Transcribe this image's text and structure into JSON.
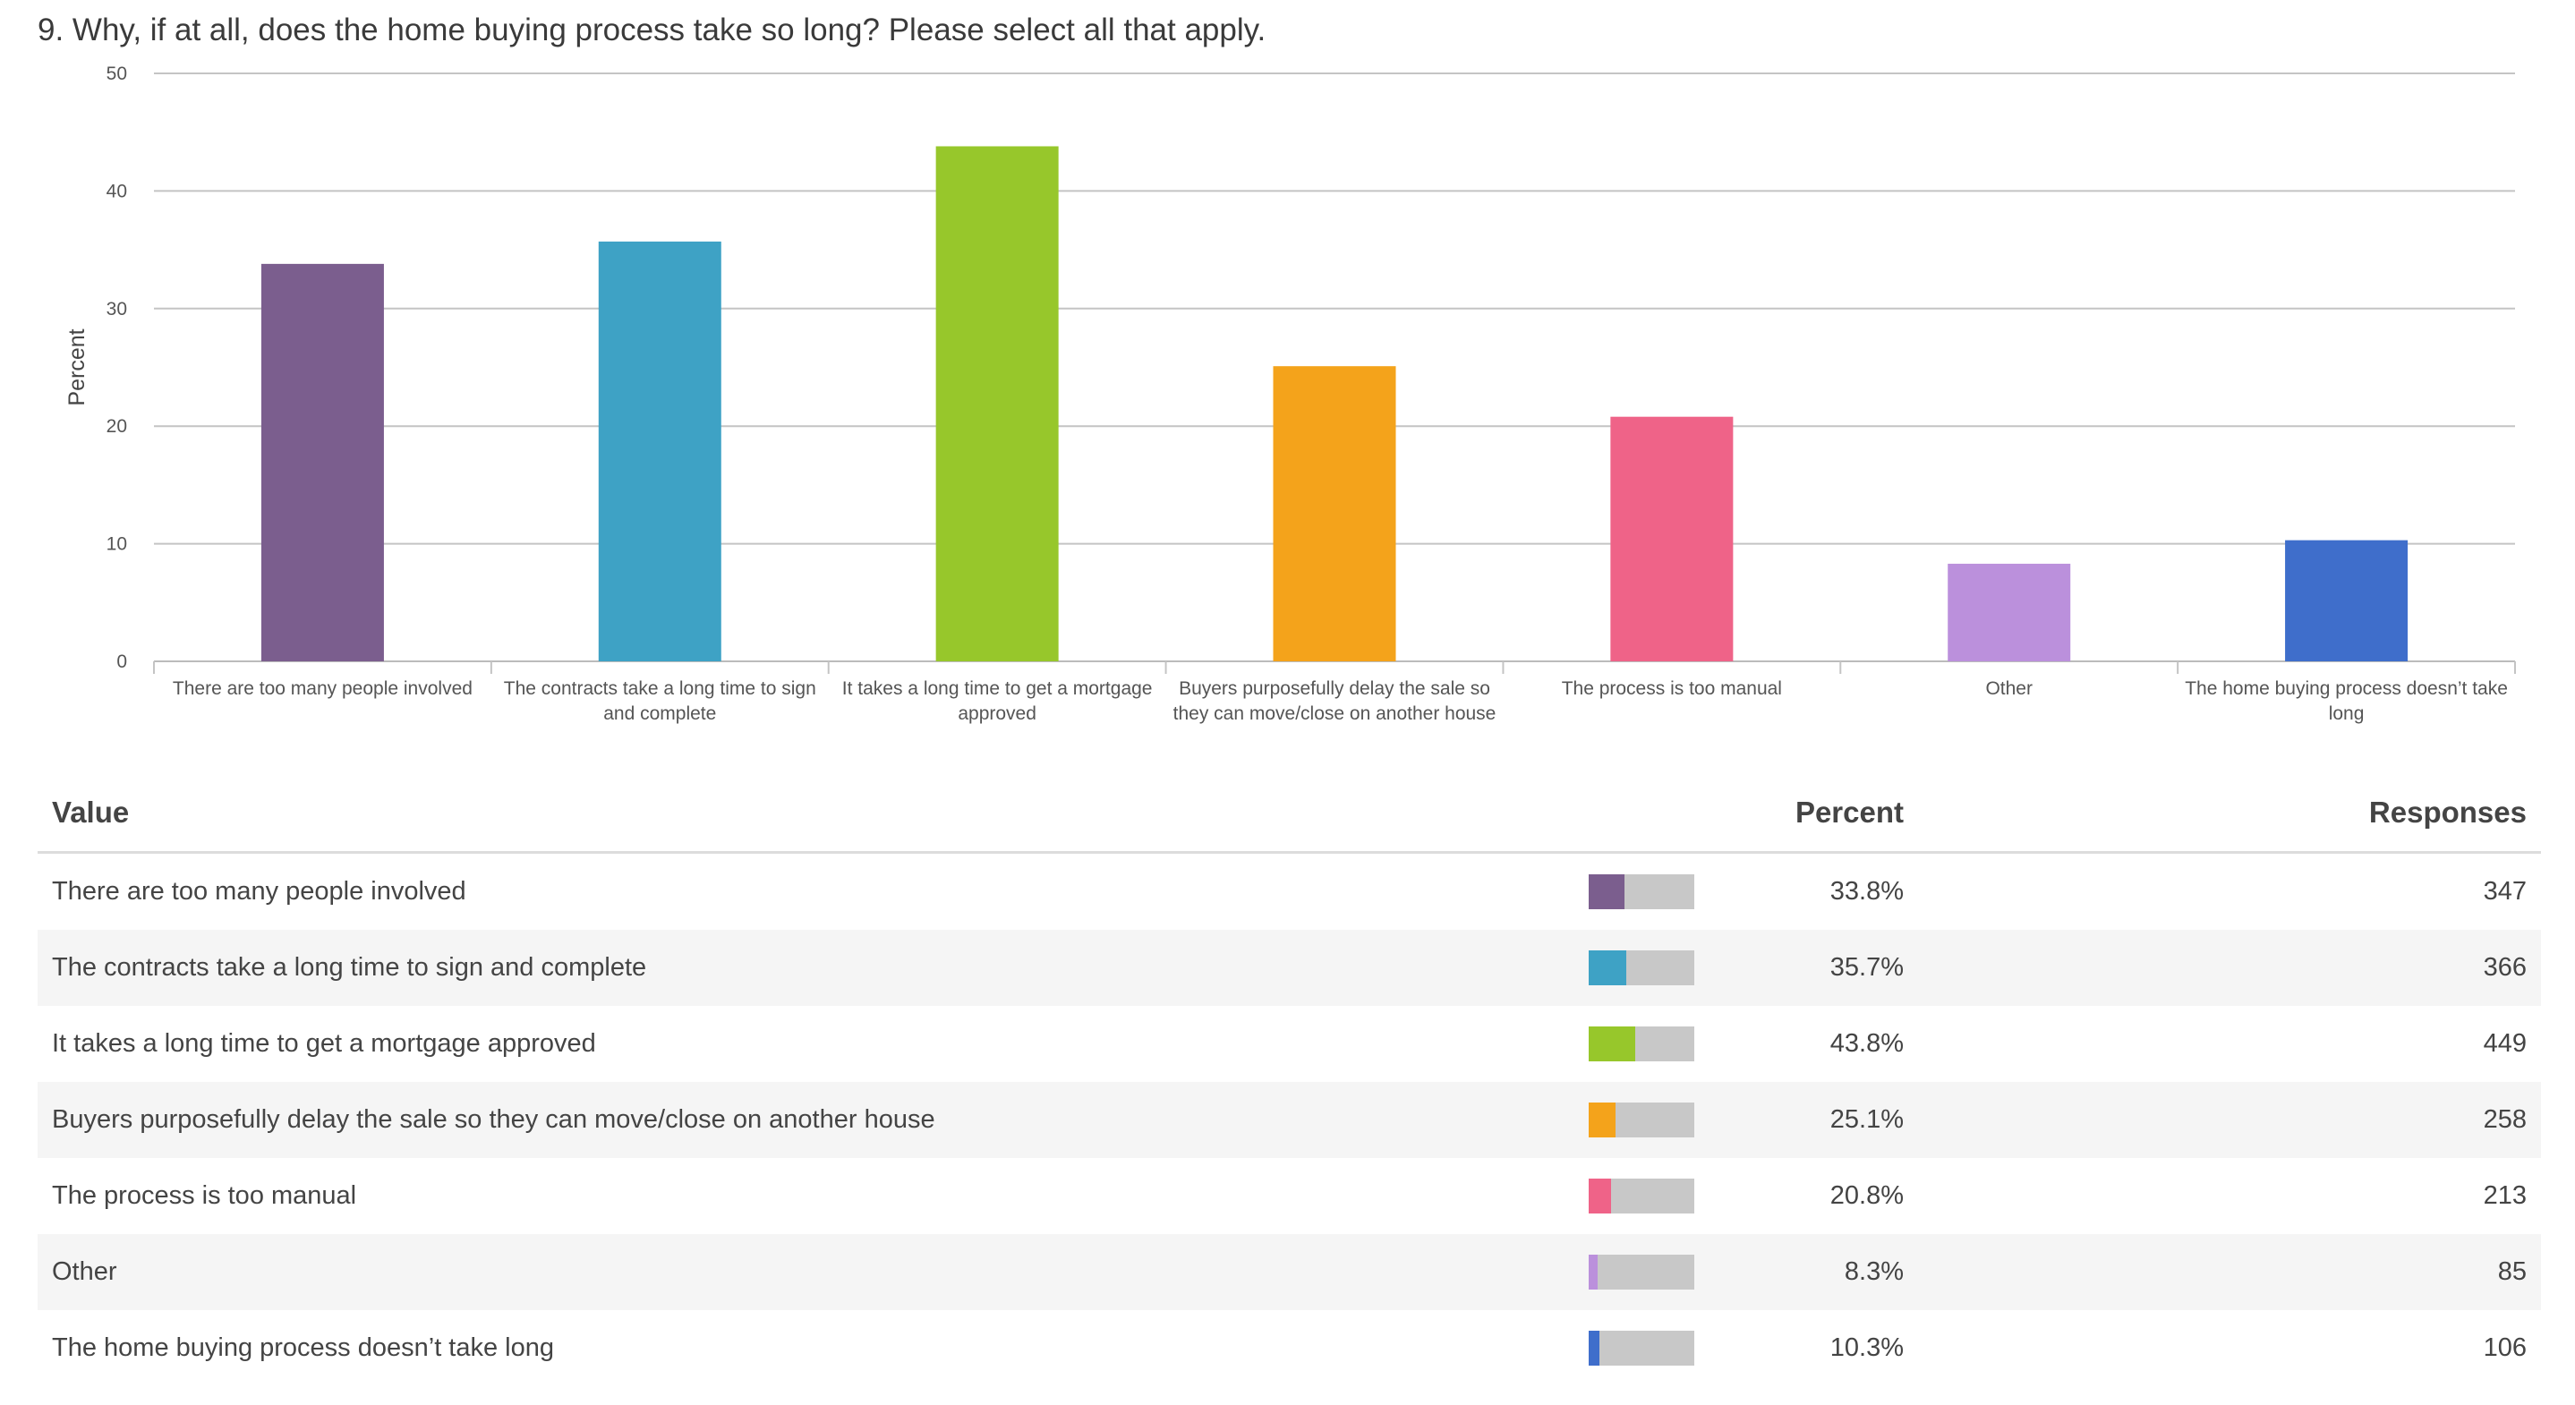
{
  "question": "9. Why, if at all, does the home buying process take so long? Please select all that apply.",
  "chart_data": {
    "type": "bar",
    "categories": [
      "There are too many people involved",
      "The contracts take a long time to sign and complete",
      "It takes a long time to get a mortgage approved",
      "Buyers purposefully delay the sale so they can move/close on another house",
      "The process is too manual",
      "Other",
      "The home buying process doesn’t take long"
    ],
    "values": [
      33.8,
      35.7,
      43.8,
      25.1,
      20.8,
      8.3,
      10.3
    ],
    "colors": [
      "#7b5e8e",
      "#3ea2c5",
      "#97c72b",
      "#f4a31b",
      "#ef6388",
      "#bb90dc",
      "#3f6ecb"
    ],
    "ylabel": "Percent",
    "ylim": [
      0,
      50
    ],
    "yticks": [
      0,
      10,
      20,
      30,
      40,
      50
    ],
    "grid": true
  },
  "table": {
    "headers": {
      "value": "Value",
      "percent": "Percent",
      "responses": "Responses"
    },
    "rows": [
      {
        "label": "There are too many people involved",
        "percent": "33.8%",
        "responses": "347",
        "fraction": 0.338,
        "color": "#7b5e8e"
      },
      {
        "label": "The contracts take a long time to sign and complete",
        "percent": "35.7%",
        "responses": "366",
        "fraction": 0.357,
        "color": "#3ea2c5"
      },
      {
        "label": "It takes a long time to get a mortgage approved",
        "percent": "43.8%",
        "responses": "449",
        "fraction": 0.438,
        "color": "#97c72b"
      },
      {
        "label": "Buyers purposefully delay the sale so they can move/close on another house",
        "percent": "25.1%",
        "responses": "258",
        "fraction": 0.251,
        "color": "#f4a31b"
      },
      {
        "label": "The process is too manual",
        "percent": "20.8%",
        "responses": "213",
        "fraction": 0.208,
        "color": "#ef6388"
      },
      {
        "label": "Other",
        "percent": "8.3%",
        "responses": "85",
        "fraction": 0.083,
        "color": "#bb90dc"
      },
      {
        "label": "The home buying process doesn’t take long",
        "percent": "10.3%",
        "responses": "106",
        "fraction": 0.103,
        "color": "#3f6ecb"
      }
    ]
  }
}
